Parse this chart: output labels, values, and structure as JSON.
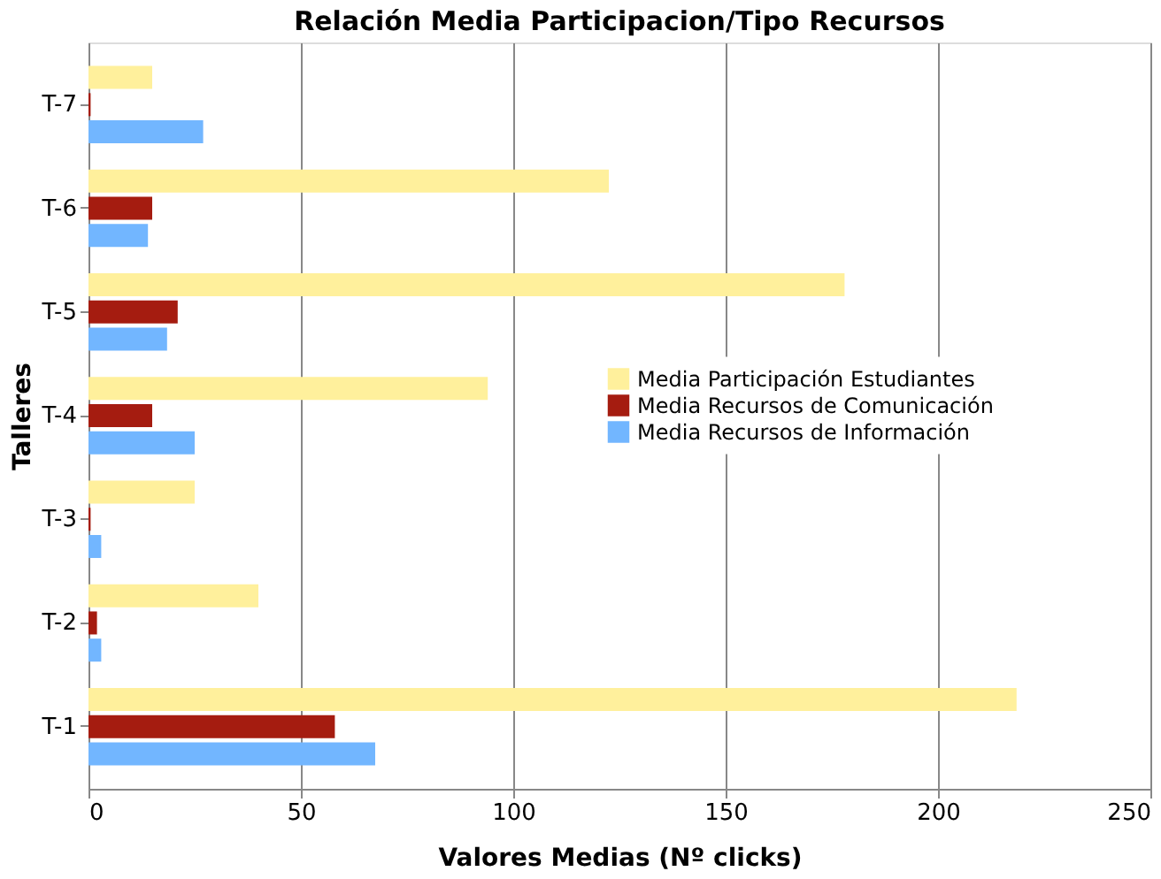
{
  "chart_data": {
    "type": "bar",
    "orientation": "horizontal",
    "title": "Relación Media Participacion/Tipo Recursos",
    "xlabel": "Valores Medias (Nº clicks)",
    "ylabel": "Talleres",
    "categories": [
      "T-7",
      "T-6",
      "T-5",
      "T-4",
      "T-3",
      "T-2",
      "T-1"
    ],
    "series": [
      {
        "name": "Media Participación Estudiantes",
        "color": "#fff09c",
        "values": [
          15,
          122.5,
          178,
          94,
          25,
          40,
          218.5
        ]
      },
      {
        "name": "Media Recursos de Comunicación",
        "color": "#a51c10",
        "values": [
          0.5,
          15,
          21,
          15,
          0.5,
          2,
          58
        ]
      },
      {
        "name": "Media Recursos de Información",
        "color": "#72b6ff",
        "values": [
          27,
          14,
          18.5,
          25,
          3,
          3,
          67.5
        ]
      }
    ],
    "xlim": [
      0,
      250
    ],
    "xticks": [
      0,
      50,
      100,
      150,
      200,
      250
    ],
    "grid": "x",
    "legend": "right"
  }
}
